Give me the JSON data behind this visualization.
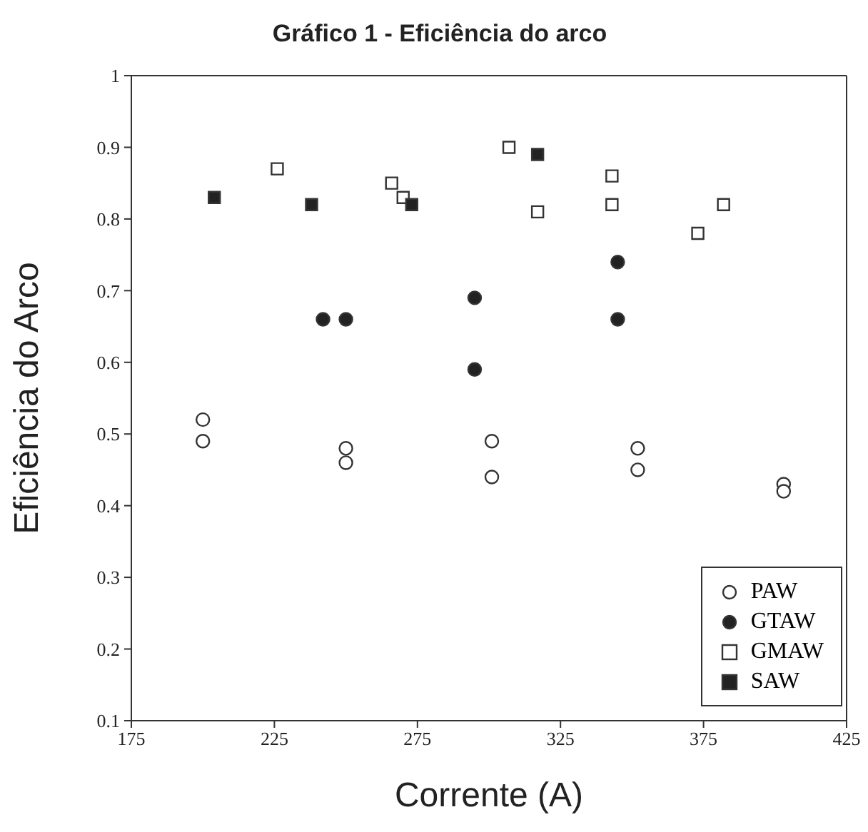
{
  "chart_data": {
    "type": "scatter",
    "title": "Gráfico 1 - Eficiência do arco",
    "xlabel": "Corrente (A)",
    "ylabel": "Eficiência do Arco",
    "xlim": [
      175,
      425
    ],
    "xticks": [
      175,
      225,
      275,
      325,
      375,
      425
    ],
    "ylim": [
      0.1,
      1
    ],
    "yticks": [
      0.1,
      0.2,
      0.3,
      0.4,
      0.5,
      0.6,
      0.7,
      0.8,
      0.9,
      1
    ],
    "legend": "bottom right",
    "series": [
      {
        "name": "PAW",
        "color": "#ffffff",
        "marker": "circle",
        "x": [
          200,
          200,
          250,
          250,
          301,
          301,
          352,
          352,
          403,
          403
        ],
        "values": [
          0.52,
          0.49,
          0.48,
          0.46,
          0.49,
          0.44,
          0.48,
          0.45,
          0.43,
          0.42
        ]
      },
      {
        "name": "GTAW",
        "color": "#222222",
        "marker": "circle",
        "x": [
          242,
          250,
          295,
          295,
          345,
          345
        ],
        "values": [
          0.66,
          0.66,
          0.69,
          0.59,
          0.74,
          0.66
        ]
      },
      {
        "name": "GMAW",
        "color": "#ffffff",
        "marker": "square",
        "x": [
          226,
          266,
          270,
          307,
          317,
          343,
          343,
          373,
          382
        ],
        "values": [
          0.87,
          0.85,
          0.83,
          0.9,
          0.81,
          0.86,
          0.82,
          0.78,
          0.82
        ]
      },
      {
        "name": "SAW",
        "color": "#222222",
        "marker": "square",
        "x": [
          204,
          238,
          273,
          317
        ],
        "values": [
          0.83,
          0.82,
          0.82,
          0.89
        ]
      }
    ]
  }
}
